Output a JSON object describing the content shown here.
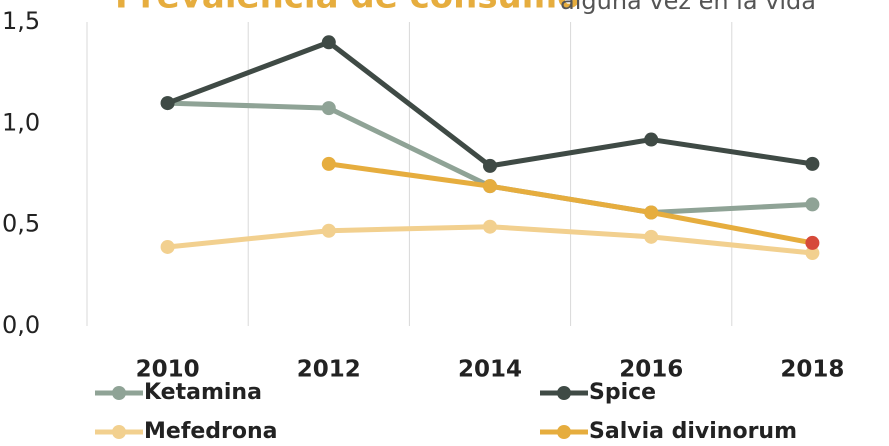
{
  "chart_data": {
    "type": "line",
    "title": "Prevalencia de consumo",
    "subtitle": "alguna vez en la vida",
    "categories": [
      "2010",
      "2012",
      "2014",
      "2016",
      "2018"
    ],
    "series": [
      {
        "name": "Ketamina",
        "color": "#8fa396",
        "values": [
          1.1,
          1.075,
          0.69,
          0.56,
          0.6
        ]
      },
      {
        "name": "Spice",
        "color": "#3f4a45",
        "values": [
          1.1,
          1.4,
          0.79,
          0.92,
          0.8
        ]
      },
      {
        "name": "Mefedrona",
        "color": "#f2d08f",
        "values": [
          0.39,
          0.47,
          0.49,
          0.44,
          0.36
        ]
      },
      {
        "name": "Salvia divinorum",
        "color": "#e6ad3e",
        "values": [
          null,
          0.8,
          0.69,
          0.56,
          0.41
        ],
        "marker_colors": [
          null,
          null,
          null,
          null,
          "#d64a3a"
        ]
      }
    ],
    "ylim": [
      0,
      1.5
    ],
    "yticks": [
      {
        "value": 0,
        "label": "0,0"
      },
      {
        "value": 0.5,
        "label": "0,5"
      },
      {
        "value": 1,
        "label": "1,0"
      },
      {
        "value": 1.5,
        "label": "1,5"
      }
    ],
    "grid": true,
    "legend": "bottom"
  }
}
